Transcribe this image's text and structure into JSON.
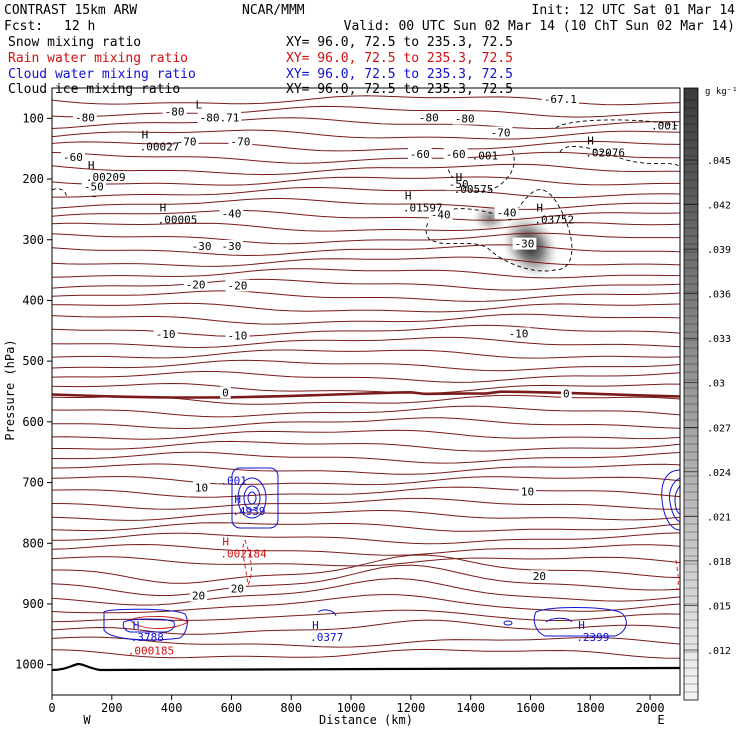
{
  "header": {
    "title": "CONTRAST 15km ARW",
    "center": "NCAR/MMM",
    "init": "Init: 12 UTC Sat 01 Mar 14",
    "fcst_label": "Fcst:",
    "fcst_value": "12 h",
    "valid": "Valid: 00 UTC Sun 02 Mar 14 (10 ChT Sun 02 Mar 14)",
    "fields": [
      {
        "name": "Snow mixing ratio",
        "xy": "XY=  96.0, 72.5 to 235.3, 72.5",
        "color": "#000000"
      },
      {
        "name": "Rain water mixing ratio",
        "xy": "XY=  96.0, 72.5 to 235.3, 72.5",
        "color": "#d01010"
      },
      {
        "name": "Cloud water mixing ratio",
        "xy": "XY=  96.0, 72.5 to 235.3, 72.5",
        "color": "#1010d0"
      },
      {
        "name": "Cloud ice mixing ratio",
        "xy": "XY=  96.0, 72.5 to 235.3, 72.5",
        "color": "#000000"
      }
    ]
  },
  "colorbar": {
    "unit": "g kg⁻¹",
    "ticks": [
      ".045",
      ".042",
      ".039",
      ".036",
      ".033",
      ".03",
      ".027",
      ".024",
      ".021",
      ".018",
      ".015",
      ".012"
    ]
  },
  "colors": {
    "temperature": "#7a1a1a",
    "rain": "#d01010",
    "cloud_water": "#1010d0",
    "terrain": "#000000"
  },
  "chart_data": {
    "type": "contour",
    "xlabel": "Distance (km)",
    "ylabel": "Pressure (hPa)",
    "xlim": [
      0,
      2100
    ],
    "ylim": [
      1050,
      50
    ],
    "x_ticks": [
      "0",
      "200",
      "400",
      "600",
      "800",
      "1000",
      "1200",
      "1400",
      "1600",
      "1800",
      "2000"
    ],
    "y_ticks": [
      "100",
      "200",
      "300",
      "400",
      "500",
      "600",
      "700",
      "800",
      "900",
      "1000"
    ],
    "x_end_labels": {
      "left": "W",
      "right": "E"
    },
    "temperature_contour_labels": [
      {
        "text": "-80",
        "x": 110,
        "p": 100
      },
      {
        "text": "-80",
        "x": 410,
        "p": 90
      },
      {
        "text": "-80.71",
        "x": 560,
        "p": 100
      },
      {
        "text": "-80",
        "x": 1260,
        "p": 100
      },
      {
        "text": "-80",
        "x": 1380,
        "p": 102
      },
      {
        "text": "-67.1",
        "x": 1700,
        "p": 70
      },
      {
        "text": "-70",
        "x": 450,
        "p": 140
      },
      {
        "text": "-70",
        "x": 630,
        "p": 140
      },
      {
        "text": "-70",
        "x": 1500,
        "p": 125
      },
      {
        "text": "-60",
        "x": 70,
        "p": 165
      },
      {
        "text": "-60",
        "x": 1230,
        "p": 160
      },
      {
        "text": "-60",
        "x": 1350,
        "p": 160
      },
      {
        "text": "-50",
        "x": 140,
        "p": 214
      },
      {
        "text": "-50",
        "x": 1360,
        "p": 210
      },
      {
        "text": "-40",
        "x": 600,
        "p": 258
      },
      {
        "text": "-40",
        "x": 1300,
        "p": 260
      },
      {
        "text": "-40",
        "x": 1520,
        "p": 257
      },
      {
        "text": "-30",
        "x": 500,
        "p": 312
      },
      {
        "text": "-30",
        "x": 600,
        "p": 312
      },
      {
        "text": "-30",
        "x": 1580,
        "p": 308
      },
      {
        "text": "-20",
        "x": 480,
        "p": 375
      },
      {
        "text": "-20",
        "x": 620,
        "p": 377
      },
      {
        "text": "-10",
        "x": 380,
        "p": 457
      },
      {
        "text": "-10",
        "x": 620,
        "p": 459
      },
      {
        "text": "-10",
        "x": 1560,
        "p": 456
      },
      {
        "text": "0",
        "x": 580,
        "p": 553
      },
      {
        "text": "0",
        "x": 1720,
        "p": 555
      },
      {
        "text": "10",
        "x": 500,
        "p": 710
      },
      {
        "text": "10",
        "x": 1590,
        "p": 716
      },
      {
        "text": "20",
        "x": 490,
        "p": 888
      },
      {
        "text": "20",
        "x": 620,
        "p": 876
      },
      {
        "text": "20",
        "x": 1630,
        "p": 856
      }
    ],
    "extrema_labels": [
      {
        "mark": "L",
        "value": "",
        "x": 520,
        "p": 90
      },
      {
        "mark": "H",
        "value": ".00027",
        "x": 340,
        "p": 140
      },
      {
        "mark": "H",
        "value": ".00209",
        "x": 160,
        "p": 190
      },
      {
        "mark": "H",
        "value": ".00005",
        "x": 400,
        "p": 260
      },
      {
        "mark": "H",
        "value": ".01597",
        "x": 1220,
        "p": 240
      },
      {
        "mark": "H",
        "value": ".00575",
        "x": 1390,
        "p": 210
      },
      {
        "mark": "H",
        "value": ".03752",
        "x": 1660,
        "p": 260
      },
      {
        "mark": "H",
        "value": ".02076",
        "x": 1830,
        "p": 150
      },
      {
        "mark": "",
        "value": ".001",
        "x": 1450,
        "p": 155
      },
      {
        "mark": "",
        "value": ".001",
        "x": 2050,
        "p": 105
      },
      {
        "mark": "H",
        "value": ".4939",
        "x": 650,
        "p": 740
      },
      {
        "mark": "",
        "value": ".001",
        "x": 610,
        "p": 690
      },
      {
        "mark": "H",
        "value": ".002184",
        "x": 610,
        "p": 810
      },
      {
        "mark": "H",
        "value": ".3788",
        "x": 310,
        "p": 948
      },
      {
        "mark": "",
        "value": ".000185",
        "x": 300,
        "p": 970
      },
      {
        "mark": "H",
        "value": ".0377",
        "x": 910,
        "p": 948
      },
      {
        "mark": "H",
        "value": ".2399",
        "x": 1800,
        "p": 948
      }
    ]
  }
}
